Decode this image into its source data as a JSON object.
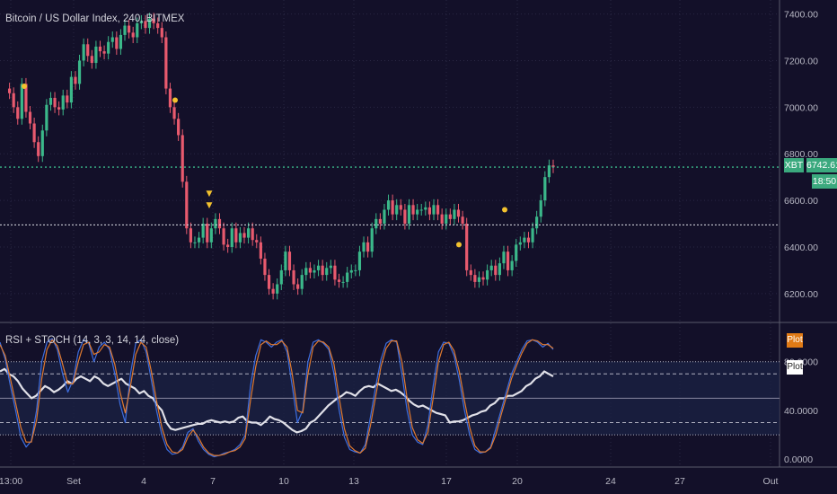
{
  "chart_data": [
    {
      "type": "candlestick",
      "title": "Bitcoin / US Dollar Index, 240, BITMEX",
      "ylim": [
        6080,
        7460
      ],
      "y_ticks": [
        "7400.00",
        "7200.00",
        "7000.00",
        "6800.00",
        "6600.00",
        "6400.00",
        "6200.00"
      ],
      "x_ticks": [
        "13:00",
        "Set",
        "4",
        "7",
        "10",
        "13",
        "17",
        "20",
        "24",
        "27",
        "Out"
      ],
      "symbol_tag": "XBT",
      "last_price": "6742.61",
      "countdown": "18:50",
      "price_line": 6742.61,
      "support_line": 6495,
      "grid": true,
      "marker_up": "▼",
      "marker_dot": "●",
      "close_series": [
        7080,
        7060,
        7000,
        6950,
        7100,
        6980,
        6930,
        6850,
        6790,
        6900,
        7010,
        7040,
        7000,
        6990,
        7050,
        7020,
        7130,
        7100,
        7200,
        7270,
        7220,
        7190,
        7260,
        7240,
        7230,
        7280,
        7300,
        7250,
        7310,
        7350,
        7320,
        7300,
        7360,
        7370,
        7340,
        7380,
        7360,
        7340,
        7300,
        7080,
        7000,
        6950,
        6880,
        6680,
        6480,
        6420,
        6420,
        6440,
        6500,
        6420,
        6480,
        6520,
        6480,
        6410,
        6400,
        6480,
        6420,
        6460,
        6440,
        6480,
        6430,
        6420,
        6350,
        6280,
        6220,
        6200,
        6240,
        6300,
        6380,
        6300,
        6240,
        6220,
        6280,
        6310,
        6290,
        6300,
        6320,
        6280,
        6310,
        6320,
        6260,
        6250,
        6250,
        6290,
        6300,
        6300,
        6380,
        6420,
        6380,
        6480,
        6520,
        6500,
        6560,
        6600,
        6540,
        6580,
        6560,
        6500,
        6580,
        6540,
        6560,
        6560,
        6570,
        6540,
        6580,
        6540,
        6500,
        6540,
        6520,
        6560,
        6530,
        6500,
        6300,
        6280,
        6250,
        6270,
        6260,
        6300,
        6320,
        6280,
        6330,
        6380,
        6300,
        6340,
        6410,
        6420,
        6440,
        6420,
        6480,
        6530,
        6600,
        6700,
        6750,
        6742
      ]
    },
    {
      "type": "line",
      "title": "RSI + STOCH (14, 3, 3, 14, 14, close)",
      "ylim": [
        -5,
        110
      ],
      "y_ticks": [
        "80.0000",
        "40.0000",
        "0.0000"
      ],
      "bands": [
        80,
        70,
        50,
        30,
        20
      ],
      "legend": [
        "Plot",
        "Plot"
      ],
      "series": [
        {
          "color": "#e0e0e8",
          "values": [
            72,
            74,
            70,
            68,
            64,
            58,
            54,
            50,
            52,
            56,
            60,
            58,
            55,
            57,
            60,
            64,
            62,
            66,
            68,
            66,
            64,
            68,
            66,
            62,
            60,
            62,
            64,
            66,
            62,
            60,
            58,
            54,
            56,
            52,
            50,
            44,
            40,
            30,
            25,
            24,
            25,
            26,
            27,
            28,
            29,
            29,
            31,
            32,
            31,
            30,
            31,
            30,
            31,
            34,
            35,
            31,
            30,
            30,
            28,
            31,
            35,
            33,
            32,
            30,
            27,
            24,
            22,
            23,
            25,
            30,
            32,
            36,
            40,
            44,
            47,
            50,
            52,
            55,
            54,
            52,
            56,
            59,
            60,
            59,
            62,
            60,
            58,
            56,
            57,
            55,
            52,
            48,
            45,
            43,
            44,
            42,
            40,
            38,
            37,
            36,
            30,
            31,
            31,
            32,
            34,
            36,
            37,
            39,
            40,
            44,
            46,
            50,
            50,
            52,
            52,
            54,
            56,
            60,
            62,
            66,
            68,
            72,
            70,
            68
          ]
        },
        {
          "color": "#3d6ee0",
          "values": [
            96,
            82,
            60,
            40,
            18,
            10,
            15,
            40,
            80,
            96,
            99,
            90,
            70,
            55,
            65,
            88,
            98,
            95,
            80,
            92,
            96,
            90,
            70,
            45,
            30,
            70,
            95,
            98,
            88,
            65,
            40,
            20,
            8,
            4,
            5,
            10,
            22,
            25,
            15,
            8,
            4,
            2,
            3,
            5,
            6,
            8,
            12,
            20,
            60,
            85,
            98,
            96,
            92,
            96,
            98,
            88,
            60,
            30,
            40,
            80,
            96,
            98,
            95,
            90,
            70,
            40,
            18,
            8,
            6,
            5,
            12,
            35,
            60,
            82,
            95,
            98,
            96,
            70,
            40,
            20,
            14,
            12,
            28,
            60,
            88,
            96,
            95,
            85,
            65,
            40,
            20,
            8,
            5,
            6,
            10,
            25,
            40,
            55,
            70,
            80,
            90,
            97,
            98,
            96,
            92,
            95,
            90
          ]
        },
        {
          "color": "#e07a30",
          "values": [
            94,
            85,
            66,
            46,
            26,
            14,
            14,
            32,
            66,
            90,
            98,
            93,
            78,
            62,
            62,
            80,
            94,
            96,
            86,
            88,
            94,
            92,
            78,
            55,
            38,
            60,
            86,
            96,
            92,
            72,
            48,
            26,
            12,
            6,
            5,
            8,
            18,
            24,
            18,
            10,
            5,
            3,
            3,
            4,
            6,
            7,
            10,
            17,
            48,
            76,
            94,
            97,
            94,
            94,
            97,
            92,
            70,
            40,
            38,
            70,
            92,
            97,
            96,
            92,
            78,
            50,
            25,
            11,
            7,
            5,
            9,
            28,
            52,
            76,
            91,
            97,
            97,
            80,
            50,
            26,
            16,
            13,
            22,
            50,
            80,
            94,
            96,
            89,
            72,
            48,
            26,
            11,
            6,
            6,
            9,
            20,
            36,
            51,
            66,
            77,
            87,
            95,
            98,
            97,
            94,
            94,
            91
          ]
        }
      ]
    }
  ]
}
